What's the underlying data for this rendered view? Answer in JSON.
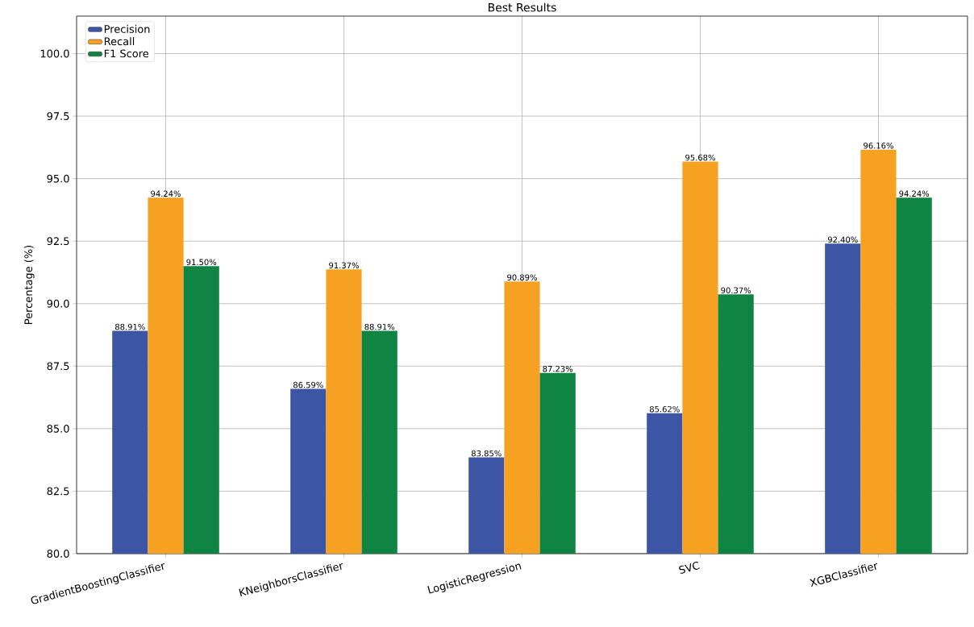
{
  "chart_data": {
    "type": "bar",
    "title": "Best Results",
    "ylabel": "Percentage (%)",
    "categories": [
      "GradientBoostingClassifier",
      "KNeighborsClassifier",
      "LogisticRegression",
      "SVC",
      "XGBClassifier"
    ],
    "series": [
      {
        "name": "Precision",
        "color": "#3d55a5",
        "values": [
          88.91,
          86.59,
          83.85,
          85.62,
          92.4
        ],
        "value_labels": [
          "88.91%",
          "86.59%",
          "83.85%",
          "85.62%",
          "92.40%"
        ]
      },
      {
        "name": "Recall",
        "color": "#f7a122",
        "values": [
          94.24,
          91.37,
          90.89,
          95.68,
          96.16
        ],
        "value_labels": [
          "94.24%",
          "91.37%",
          "90.89%",
          "95.68%",
          "96.16%"
        ]
      },
      {
        "name": "F1 Score",
        "color": "#108442",
        "values": [
          91.5,
          88.91,
          87.23,
          90.37,
          94.24
        ],
        "value_labels": [
          "91.50%",
          "88.91%",
          "87.23%",
          "90.37%",
          "94.24%"
        ]
      }
    ],
    "ylim": [
      80,
      101.5
    ],
    "yticks": [
      {
        "value": 80,
        "label": "80.0"
      },
      {
        "value": 82.5,
        "label": "82.5"
      },
      {
        "value": 85,
        "label": "85.0"
      },
      {
        "value": 87.5,
        "label": "87.5"
      },
      {
        "value": 90,
        "label": "90.0"
      },
      {
        "value": 92.5,
        "label": "92.5"
      },
      {
        "value": 95,
        "label": "95.0"
      },
      {
        "value": 97.5,
        "label": "97.5"
      },
      {
        "value": 100,
        "label": "100.0"
      }
    ],
    "grid": true,
    "legend": "top left"
  }
}
